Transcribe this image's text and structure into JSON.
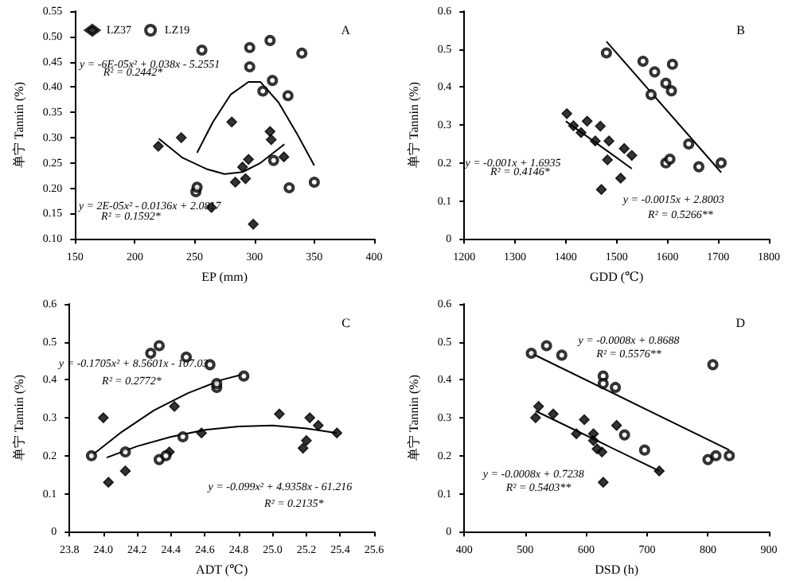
{
  "chart_data": [
    {
      "type": "scatter",
      "title": "A",
      "xlabel": "EP (mm)",
      "ylabel": "单宁 Tannin (%)",
      "legend": "top left",
      "grid": false,
      "xlim": [
        150,
        400
      ],
      "xticks": [
        150,
        200,
        250,
        300,
        350,
        400
      ],
      "ylim": [
        0.1,
        0.55
      ],
      "yticks": [
        {
          "value": 0.1,
          "label": "0.10"
        },
        0.15,
        {
          "value": 0.2,
          "label": "0.20"
        },
        0.25,
        {
          "value": 0.3,
          "label": "0.30"
        },
        0.35,
        {
          "value": 0.4,
          "label": "0.40"
        },
        0.45,
        {
          "value": 0.5,
          "label": "0.50"
        },
        0.55
      ],
      "series": [
        {
          "name": "LZ37",
          "type": "scatter",
          "marker": "diamond",
          "color": "#000000",
          "x": [
            219.6,
            238.8,
            264,
            281,
            284,
            290,
            292.5,
            295,
            299,
            313,
            314,
            324.6
          ],
          "values": [
            0.283,
            0.3,
            0.162,
            0.331,
            0.212,
            0.242,
            0.219,
            0.257,
            0.129,
            0.312,
            0.296,
            0.262
          ]
        },
        {
          "name": "LZ19",
          "type": "scatter",
          "marker": "circle",
          "color": "#000000",
          "x": [
            251,
            252,
            256,
            296,
            296,
            307,
            313,
            315,
            316,
            328,
            329,
            339.6,
            350
          ],
          "values": [
            0.193,
            0.202,
            0.473,
            0.44,
            0.478,
            0.392,
            0.492,
            0.413,
            0.255,
            0.383,
            0.201,
            0.467,
            0.212
          ]
        },
        {
          "type": "line",
          "marker": "none",
          "color": "#000000",
          "x": [
            220,
            240,
            260,
            275,
            290,
            305,
            325
          ],
          "values": [
            0.298,
            0.26,
            0.238,
            0.228,
            0.232,
            0.25,
            0.287
          ]
        },
        {
          "type": "line",
          "marker": "none",
          "color": "#000000",
          "x": [
            252,
            265,
            280,
            295,
            305,
            320,
            335,
            350
          ],
          "values": [
            0.27,
            0.33,
            0.385,
            0.41,
            0.41,
            0.37,
            0.31,
            0.245
          ]
        }
      ],
      "annotations": [
        "y = -6E-05x² + 0.038x - 5.2551",
        "R² = 0.2442*",
        "y = 2E-05x² - 0.0136x + 2.0817",
        "R² = 0.1592*"
      ]
    },
    {
      "type": "scatter",
      "title": "B",
      "xlabel": "GDD (℃)",
      "ylabel": "单宁 Tannin (%)",
      "grid": false,
      "xlim": [
        1200,
        1800
      ],
      "xticks": [
        1200,
        1300,
        1400,
        1500,
        1600,
        1700,
        1800
      ],
      "ylim": [
        0,
        0.6
      ],
      "yticks": [
        0,
        0.1,
        0.2,
        0.3,
        0.4,
        0.5,
        0.6
      ],
      "series": [
        {
          "type": "scatter",
          "marker": "diamond",
          "color": "#000000",
          "x": [
            1402,
            1415,
            1430,
            1442,
            1458,
            1468,
            1470,
            1482,
            1485,
            1508,
            1515,
            1530
          ],
          "values": [
            0.33,
            0.298,
            0.28,
            0.31,
            0.258,
            0.297,
            0.13,
            0.208,
            0.258,
            0.16,
            0.238,
            0.22
          ]
        },
        {
          "type": "scatter",
          "marker": "circle",
          "color": "#000000",
          "x": [
            1480,
            1552,
            1568,
            1575,
            1597,
            1597,
            1605,
            1608,
            1610,
            1642,
            1662,
            1706
          ],
          "values": [
            0.49,
            0.468,
            0.38,
            0.44,
            0.41,
            0.2,
            0.21,
            0.39,
            0.46,
            0.25,
            0.19,
            0.2
          ]
        },
        {
          "type": "line",
          "marker": "none",
          "color": "#000000",
          "x": [
            1400,
            1530
          ],
          "values": [
            0.31,
            0.185
          ]
        },
        {
          "type": "line",
          "marker": "none",
          "color": "#000000",
          "x": [
            1480,
            1706
          ],
          "values": [
            0.52,
            0.175
          ]
        }
      ],
      "annotations": [
        "y = -0.001x + 1.6935",
        "R² = 0.4146*",
        "y = -0.0015x + 2.8003",
        "R² = 0.5266**"
      ]
    },
    {
      "type": "scatter",
      "title": "C",
      "xlabel": "ADT (℃)",
      "ylabel": "单宁 Tannin (%)",
      "grid": false,
      "xlim": [
        23.8,
        25.6
      ],
      "xticks": [
        23.8,
        {
          "value": 24,
          "label": "24.0"
        },
        24.2,
        24.4,
        24.6,
        24.8,
        {
          "value": 25,
          "label": "25.0"
        },
        25.2,
        25.4,
        25.6
      ],
      "ylim": [
        0,
        0.6
      ],
      "yticks": [
        0,
        0.1,
        0.2,
        0.3,
        0.4,
        0.5,
        0.6
      ],
      "series": [
        {
          "type": "scatter",
          "marker": "diamond",
          "color": "#000000",
          "x": [
            24.0,
            24.03,
            24.13,
            24.39,
            24.42,
            24.58,
            25.04,
            25.18,
            25.2,
            25.22,
            25.27,
            25.38
          ],
          "values": [
            0.3,
            0.13,
            0.16,
            0.21,
            0.33,
            0.26,
            0.31,
            0.22,
            0.24,
            0.3,
            0.28,
            0.26
          ]
        },
        {
          "type": "scatter",
          "marker": "circle",
          "color": "#000000",
          "x": [
            23.93,
            24.13,
            24.28,
            24.33,
            24.33,
            24.37,
            24.47,
            24.49,
            24.63,
            24.67,
            24.67,
            24.83
          ],
          "values": [
            0.2,
            0.21,
            0.47,
            0.49,
            0.19,
            0.2,
            0.25,
            0.46,
            0.44,
            0.38,
            0.39,
            0.41
          ]
        },
        {
          "type": "line",
          "marker": "none",
          "color": "#000000",
          "x": [
            24.02,
            24.2,
            24.4,
            24.6,
            24.8,
            25.0,
            25.2,
            25.38
          ],
          "values": [
            0.195,
            0.225,
            0.25,
            0.268,
            0.277,
            0.28,
            0.272,
            0.26
          ]
        },
        {
          "type": "line",
          "marker": "none",
          "color": "#000000",
          "x": [
            23.93,
            24.1,
            24.3,
            24.5,
            24.7,
            24.83
          ],
          "values": [
            0.2,
            0.26,
            0.32,
            0.365,
            0.4,
            0.415
          ]
        }
      ],
      "annotations": [
        "y = -0.1705x² + 8.5601x - 107.03",
        "R² = 0.2772*",
        "y = -0.099x² + 4.9358x - 61.216",
        "R² = 0.2135*"
      ]
    },
    {
      "type": "scatter",
      "title": "D",
      "xlabel": "DSD (h)",
      "ylabel": "单宁 Tannin (%)",
      "grid": false,
      "xlim": [
        400,
        900
      ],
      "xticks": [
        400,
        500,
        600,
        700,
        800,
        900
      ],
      "ylim": [
        0,
        0.6
      ],
      "yticks": [
        0,
        0.1,
        0.2,
        0.3,
        0.4,
        0.5,
        0.6
      ],
      "series": [
        {
          "type": "scatter",
          "marker": "diamond",
          "color": "#000000",
          "x": [
            517,
            522,
            546,
            584,
            597,
            612,
            612,
            618,
            626,
            628,
            650,
            720
          ],
          "values": [
            0.3,
            0.33,
            0.31,
            0.258,
            0.295,
            0.258,
            0.24,
            0.218,
            0.21,
            0.13,
            0.28,
            0.16
          ]
        },
        {
          "type": "scatter",
          "marker": "circle",
          "color": "#000000",
          "x": [
            510,
            535,
            560,
            628,
            628,
            648,
            663,
            696,
            800,
            808,
            813,
            835
          ],
          "values": [
            0.47,
            0.49,
            0.465,
            0.41,
            0.39,
            0.38,
            0.255,
            0.215,
            0.19,
            0.44,
            0.2,
            0.2
          ]
        },
        {
          "type": "line",
          "marker": "none",
          "color": "#000000",
          "x": [
            517,
            720
          ],
          "values": [
            0.318,
            0.16
          ]
        },
        {
          "type": "line",
          "marker": "none",
          "color": "#000000",
          "x": [
            510,
            835
          ],
          "values": [
            0.47,
            0.215
          ]
        }
      ],
      "annotations": [
        "y = -0.0008x + 0.8688",
        "R² = 0.5576**",
        "y = -0.0008x + 0.7238",
        "R² = 0.5403**"
      ]
    }
  ]
}
